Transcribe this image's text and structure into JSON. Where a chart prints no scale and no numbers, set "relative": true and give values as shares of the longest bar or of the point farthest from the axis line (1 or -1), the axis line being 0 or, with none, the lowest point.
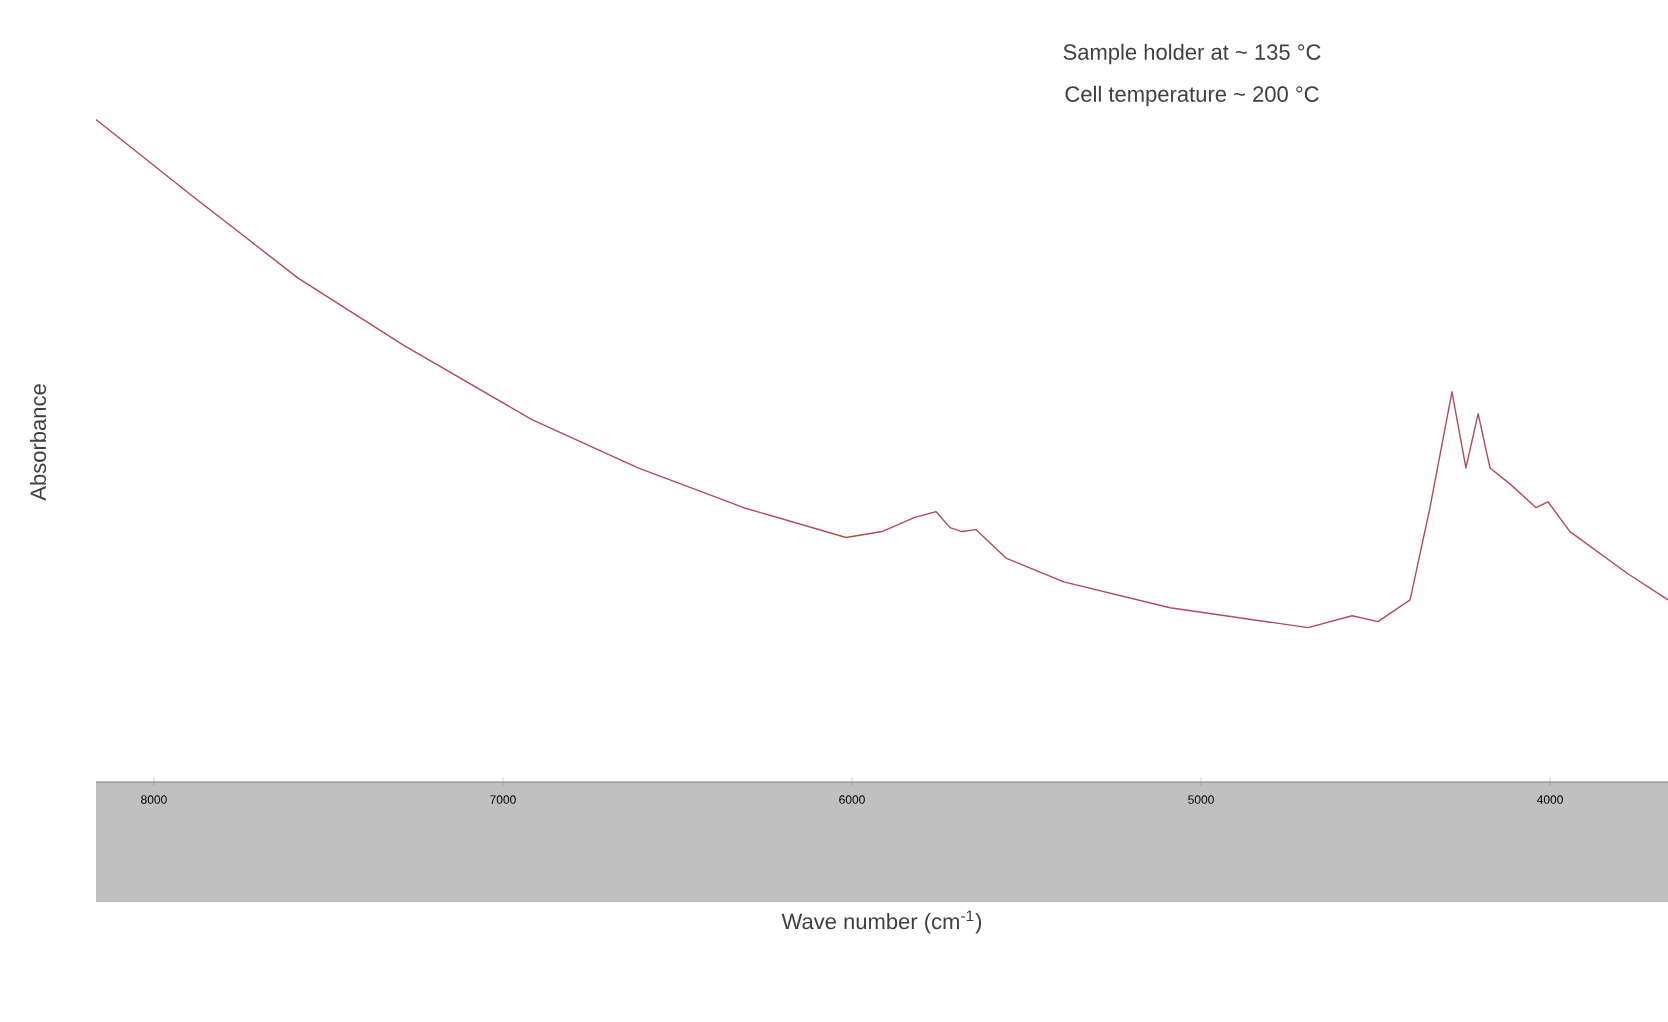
{
  "chart_data": {
    "type": "line",
    "xlabel": "Wave number (cm$^{-1}$)",
    "ylabel": "Absorbance",
    "relative": true,
    "annotations": [
      "Sample holder at ~ 135 °C",
      "Cell temperature ~ 200 °C"
    ],
    "xlim": [
      8166,
      3662
    ],
    "xticks": [
      8000,
      7000,
      6000,
      5000,
      4000
    ],
    "series": [
      {
        "color": "#b24a58",
        "x": [
          8166,
          7891,
          7588,
          7284,
          6917,
          6613,
          6310,
          6017,
          5914,
          5822,
          5759,
          5719,
          5685,
          5645,
          5559,
          5393,
          5089,
          4693,
          4567,
          4493,
          4401,
          4344,
          4281,
          4241,
          4206,
          4172,
          4115,
          4040,
          4006,
          3943,
          3776,
          3662
        ],
        "values": [
          1.0,
          0.885,
          0.761,
          0.659,
          0.547,
          0.474,
          0.414,
          0.369,
          0.378,
          0.399,
          0.408,
          0.384,
          0.378,
          0.381,
          0.338,
          0.302,
          0.263,
          0.233,
          0.251,
          0.242,
          0.275,
          0.414,
          0.589,
          0.474,
          0.556,
          0.474,
          0.45,
          0.414,
          0.423,
          0.378,
          0.314,
          0.275
        ]
      }
    ]
  }
}
